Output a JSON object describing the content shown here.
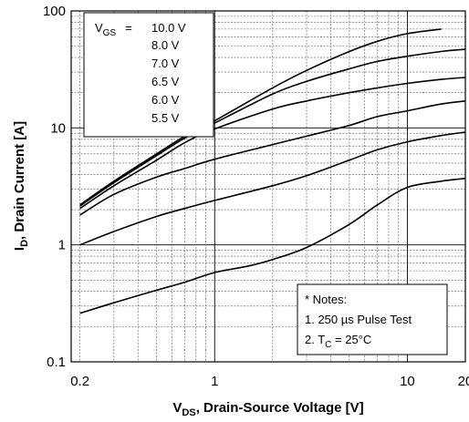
{
  "chart_data": {
    "type": "line",
    "x_scale": "log",
    "y_scale": "log",
    "xlim": [
      0.18,
      20
    ],
    "ylim": [
      0.1,
      100
    ],
    "xticks": [
      {
        "value": 0.2,
        "label": "0.2"
      },
      {
        "value": 1,
        "label": "1"
      },
      {
        "value": 10,
        "label": "10"
      },
      {
        "value": 20,
        "label": "20"
      }
    ],
    "yticks": [
      {
        "value": 0.1,
        "label": "0.1"
      },
      {
        "value": 1,
        "label": "1"
      },
      {
        "value": 10,
        "label": "10"
      },
      {
        "value": 100,
        "label": "100"
      }
    ],
    "xlabel": {
      "main": "V",
      "sub": "DS",
      "rest": ", Drain-Source Voltage [V]"
    },
    "ylabel": {
      "main": "I",
      "sub": "D",
      "rest": ", Drain Current [A]"
    },
    "grid": true,
    "legend": {
      "position": "top-left",
      "header_main": "V",
      "header_sub": "GS",
      "header_eq": "=",
      "entries": [
        "10.0 V",
        "8.0 V",
        "7.0 V",
        "6.5 V",
        "6.0 V",
        "5.5 V"
      ]
    },
    "notes": {
      "position": "bottom-right",
      "title": "* Notes:",
      "line1": "1. 250 µs Pulse Test",
      "line2_main": "2. T",
      "line2_sub": "C",
      "line2_rest": " = 25°C"
    },
    "series": [
      {
        "name": "10.0 V",
        "points": [
          [
            0.2,
            2.2
          ],
          [
            0.3,
            3.5
          ],
          [
            0.5,
            6.0
          ],
          [
            0.7,
            8.5
          ],
          [
            1,
            11.5
          ],
          [
            2,
            22
          ],
          [
            3,
            31
          ],
          [
            5,
            45
          ],
          [
            7,
            55
          ],
          [
            10,
            64
          ],
          [
            15,
            70
          ]
        ]
      },
      {
        "name": "8.0 V",
        "points": [
          [
            0.2,
            2.15
          ],
          [
            0.3,
            3.4
          ],
          [
            0.5,
            5.8
          ],
          [
            0.7,
            8.2
          ],
          [
            1,
            11.0
          ],
          [
            2,
            19.5
          ],
          [
            3,
            25
          ],
          [
            5,
            32
          ],
          [
            7,
            37
          ],
          [
            10,
            41
          ],
          [
            15,
            45
          ],
          [
            20,
            47
          ]
        ]
      },
      {
        "name": "7.0 V",
        "points": [
          [
            0.2,
            2.05
          ],
          [
            0.3,
            3.2
          ],
          [
            0.5,
            5.3
          ],
          [
            0.7,
            7.5
          ],
          [
            1,
            9.8
          ],
          [
            2,
            14.5
          ],
          [
            3,
            17
          ],
          [
            5,
            20
          ],
          [
            7,
            22
          ],
          [
            10,
            24
          ],
          [
            15,
            26
          ],
          [
            20,
            27
          ]
        ]
      },
      {
        "name": "6.5 V",
        "points": [
          [
            0.2,
            1.8
          ],
          [
            0.3,
            2.7
          ],
          [
            0.5,
            3.8
          ],
          [
            0.7,
            4.5
          ],
          [
            1,
            5.4
          ],
          [
            2,
            7.2
          ],
          [
            3,
            8.5
          ],
          [
            5,
            10.5
          ],
          [
            7,
            12.5
          ],
          [
            10,
            14
          ],
          [
            15,
            16
          ],
          [
            20,
            17
          ]
        ]
      },
      {
        "name": "6.0 V",
        "points": [
          [
            0.2,
            1.0
          ],
          [
            0.3,
            1.3
          ],
          [
            0.5,
            1.75
          ],
          [
            0.7,
            2.05
          ],
          [
            1,
            2.4
          ],
          [
            2,
            3.2
          ],
          [
            3,
            3.9
          ],
          [
            5,
            5.3
          ],
          [
            7,
            6.5
          ],
          [
            10,
            7.6
          ],
          [
            15,
            8.6
          ],
          [
            20,
            9.2
          ]
        ]
      },
      {
        "name": "5.5 V",
        "points": [
          [
            0.2,
            0.26
          ],
          [
            0.3,
            0.32
          ],
          [
            0.5,
            0.41
          ],
          [
            0.7,
            0.48
          ],
          [
            1,
            0.58
          ],
          [
            1.5,
            0.66
          ],
          [
            2,
            0.75
          ],
          [
            3,
            0.95
          ],
          [
            5,
            1.5
          ],
          [
            7,
            2.2
          ],
          [
            10,
            3.1
          ],
          [
            15,
            3.5
          ],
          [
            20,
            3.7
          ]
        ]
      }
    ]
  }
}
